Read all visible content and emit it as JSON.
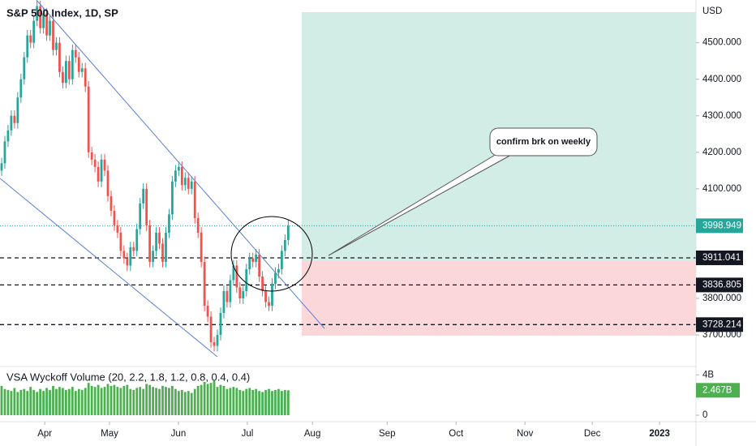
{
  "chart_data": {
    "type": "candlestick",
    "title": "S&P 500 Index, 1D, SP",
    "currency": "USD",
    "open": [
      4150,
      4170,
      4230,
      4260,
      4300,
      4280,
      4350,
      4400,
      4460,
      4520,
      4500,
      4560,
      4600,
      4540,
      4580,
      4520,
      4560,
      4480,
      4500,
      4420,
      4390,
      4450,
      4400,
      4480,
      4460,
      4420,
      4430,
      4380,
      4200,
      4180,
      4160,
      4120,
      4180,
      4150,
      4080,
      4040,
      4000,
      3980,
      3930,
      3910,
      3890,
      3940,
      3930,
      3990,
      4060,
      4100,
      4000,
      3900,
      3930,
      3980,
      3950,
      3900,
      3980,
      4030,
      4120,
      4150,
      4160,
      4110,
      4130,
      4100,
      4120,
      4020,
      3980,
      3900,
      3780,
      3750,
      3680,
      3670,
      3700,
      3760,
      3820,
      3790,
      3850,
      3890,
      3830,
      3800,
      3820,
      3880,
      3910,
      3900,
      3920,
      3860,
      3820,
      3790,
      3780,
      3840,
      3870,
      3880,
      3930,
      3960
    ],
    "high": [
      4185,
      4245,
      4275,
      4315,
      4315,
      4365,
      4415,
      4475,
      4535,
      4535,
      4575,
      4615,
      4615,
      4595,
      4595,
      4575,
      4575,
      4515,
      4515,
      4435,
      4465,
      4465,
      4495,
      4495,
      4475,
      4445,
      4445,
      4395,
      4215,
      4195,
      4175,
      4195,
      4195,
      4165,
      4095,
      4055,
      4015,
      3995,
      3945,
      3925,
      3955,
      3955,
      4005,
      4075,
      4115,
      4115,
      4015,
      3945,
      3995,
      3995,
      3965,
      3995,
      4045,
      4135,
      4165,
      4175,
      4175,
      4145,
      4145,
      4135,
      4135,
      4035,
      3995,
      3915,
      3795,
      3765,
      3695,
      3715,
      3775,
      3835,
      3835,
      3865,
      3905,
      3905,
      3845,
      3835,
      3895,
      3925,
      3925,
      3935,
      3935,
      3875,
      3835,
      3805,
      3855,
      3885,
      3895,
      3945,
      3975,
      4014
    ],
    "low": [
      4135,
      4155,
      4215,
      4245,
      4265,
      4265,
      4335,
      4385,
      4445,
      4485,
      4485,
      4545,
      4525,
      4525,
      4505,
      4505,
      4465,
      4465,
      4405,
      4375,
      4375,
      4385,
      4385,
      4445,
      4405,
      4405,
      4365,
      4185,
      4165,
      4145,
      4105,
      4105,
      4135,
      4065,
      4025,
      3985,
      3965,
      3915,
      3895,
      3875,
      3875,
      3915,
      3915,
      3975,
      4045,
      3985,
      3885,
      3885,
      3915,
      3935,
      3885,
      3885,
      3965,
      4015,
      4105,
      4135,
      4095,
      4095,
      4085,
      4085,
      4005,
      3965,
      3885,
      3765,
      3735,
      3665,
      3655,
      3655,
      3685,
      3745,
      3775,
      3775,
      3835,
      3815,
      3785,
      3785,
      3805,
      3865,
      3885,
      3885,
      3845,
      3805,
      3775,
      3765,
      3765,
      3825,
      3855,
      3865,
      3915,
      3945
    ],
    "close": [
      4170,
      4230,
      4260,
      4300,
      4280,
      4350,
      4400,
      4460,
      4520,
      4500,
      4560,
      4600,
      4540,
      4580,
      4520,
      4560,
      4480,
      4500,
      4420,
      4390,
      4450,
      4400,
      4480,
      4460,
      4420,
      4430,
      4380,
      4200,
      4180,
      4160,
      4120,
      4180,
      4150,
      4080,
      4040,
      4000,
      3980,
      3930,
      3910,
      3890,
      3940,
      3930,
      3990,
      4060,
      4100,
      4000,
      3900,
      3930,
      3980,
      3950,
      3900,
      3980,
      4030,
      4120,
      4150,
      4160,
      4110,
      4130,
      4100,
      4120,
      4020,
      3980,
      3900,
      3780,
      3750,
      3680,
      3670,
      3700,
      3760,
      3820,
      3790,
      3850,
      3890,
      3830,
      3800,
      3820,
      3880,
      3910,
      3900,
      3920,
      3860,
      3820,
      3790,
      3780,
      3840,
      3870,
      3880,
      3930,
      3960,
      3999
    ],
    "up_color": "#26a69a",
    "down_color": "#ef5350",
    "xlim": [
      -0.5,
      215.6
    ],
    "xticks": [
      {
        "value": 13.4,
        "label": "Apr"
      },
      {
        "value": 33.5,
        "label": "May"
      },
      {
        "value": 54.9,
        "label": "Jun"
      },
      {
        "value": 76.3,
        "label": "Jul"
      },
      {
        "value": 96.5,
        "label": "Aug"
      },
      {
        "value": 119.7,
        "label": "Sep"
      },
      {
        "value": 141.1,
        "label": "Oct"
      },
      {
        "value": 162.5,
        "label": "Nov"
      },
      {
        "value": 183.4,
        "label": "Dec"
      },
      {
        "value": 204.3,
        "label": "2023"
      }
    ],
    "ylim": [
      3629,
      4617
    ],
    "yticks": [
      {
        "value": 3700,
        "label": "3700.000"
      },
      {
        "value": 3800,
        "label": "3800.000"
      },
      {
        "value": 4100,
        "label": "4100.000"
      },
      {
        "value": 4200,
        "label": "4200.000"
      },
      {
        "value": 4300,
        "label": "4300.000"
      },
      {
        "value": 4400,
        "label": "4400.000"
      },
      {
        "value": 4500,
        "label": "4500.000"
      }
    ],
    "last_price": 3998.949,
    "levels": [
      3911.041,
      3836.805,
      3728.214
    ],
    "annotation": "confirm brk on weekly",
    "indicator": {
      "title": "VSA Wyckoff Volume (20, 2.2, 1.8, 1.2, 0.8, 0.4, 0.4)",
      "color": "#4caf50",
      "values": [
        2.9,
        2.6,
        2.5,
        2.4,
        2.7,
        2.3,
        2.5,
        2.6,
        2.4,
        2.8,
        2.5,
        2.3,
        2.6,
        2.4,
        2.7,
        2.5,
        2.9,
        2.6,
        2.8,
        2.7,
        2.5,
        2.6,
        2.8,
        2.4,
        2.6,
        2.5,
        2.7,
        3.2,
        2.9,
        2.8,
        3.0,
        2.7,
        2.8,
        3.1,
        2.9,
        3.0,
        2.8,
        2.7,
        2.9,
        3.0,
        2.6,
        2.5,
        2.7,
        2.8,
        2.6,
        3.1,
        3.0,
        2.8,
        2.7,
        2.6,
        2.9,
        2.8,
        2.7,
        2.9,
        2.6,
        2.4,
        2.5,
        2.3,
        2.4,
        2.2,
        2.6,
        2.9,
        3.0,
        3.3,
        3.1,
        3.2,
        3.4,
        2.8,
        3.0,
        2.9,
        2.6,
        2.7,
        2.8,
        2.7,
        2.5,
        2.4,
        2.6,
        2.7,
        2.5,
        2.6,
        2.4,
        2.3,
        2.5,
        2.6,
        2.4,
        2.5,
        2.6,
        2.4,
        2.5,
        2.467
      ],
      "ylim": [
        0,
        4.5
      ],
      "yticks": [
        {
          "value": 4,
          "label": "4B"
        },
        0
      ],
      "last": {
        "value": 2.467,
        "label": "2.467B"
      }
    }
  }
}
